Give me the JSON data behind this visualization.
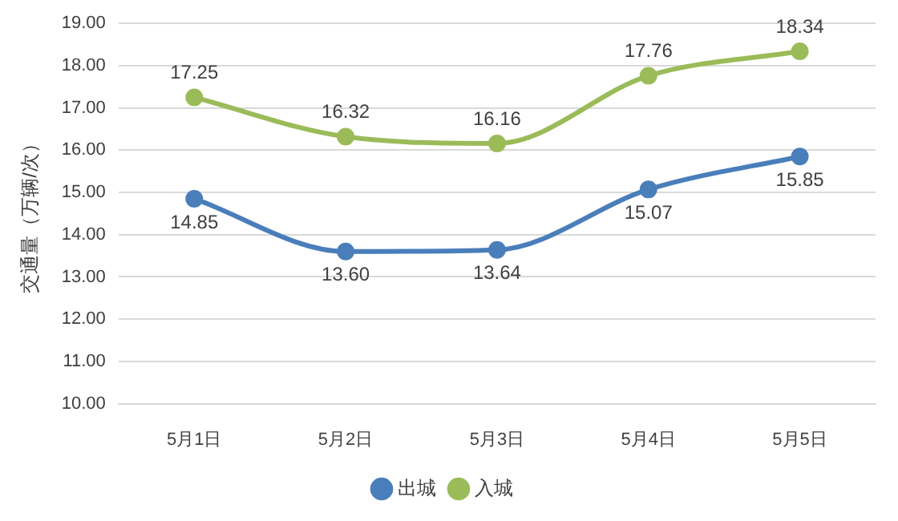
{
  "chart_data": {
    "type": "line",
    "ylabel": "交通量（万辆/次）",
    "categories": [
      "5月1日",
      "5月2日",
      "5月3日",
      "5月4日",
      "5月5日"
    ],
    "series": [
      {
        "name": "出城",
        "color": "#4a7ebb",
        "values": [
          14.85,
          13.6,
          13.64,
          15.07,
          15.85
        ],
        "value_labels": [
          "14.85",
          "13.60",
          "13.64",
          "15.07",
          "15.85"
        ]
      },
      {
        "name": "入城",
        "color": "#9bbb59",
        "values": [
          17.25,
          16.32,
          16.16,
          17.76,
          18.34
        ],
        "value_labels": [
          "17.25",
          "16.32",
          "16.16",
          "17.76",
          "18.34"
        ]
      }
    ],
    "ylim": [
      10,
      19
    ],
    "yticks": [
      {
        "value": 10,
        "label": "10.00"
      },
      {
        "value": 11,
        "label": "11.00"
      },
      {
        "value": 12,
        "label": "12.00"
      },
      {
        "value": 13,
        "label": "13.00"
      },
      {
        "value": 14,
        "label": "14.00"
      },
      {
        "value": 15,
        "label": "15.00"
      },
      {
        "value": 16,
        "label": "16.00"
      },
      {
        "value": 17,
        "label": "17.00"
      },
      {
        "value": 18,
        "label": "18.00"
      },
      {
        "value": 19,
        "label": "19.00"
      }
    ],
    "grid": "y",
    "legend": "bottom",
    "marker": "circle",
    "line_style": "solid"
  }
}
